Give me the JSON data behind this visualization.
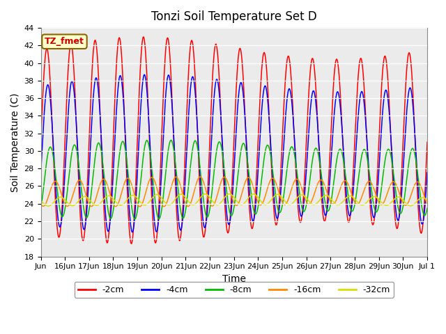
{
  "title": "Tonzi Soil Temperature Set D",
  "xlabel": "Time",
  "ylabel": "Soil Temperature (C)",
  "ylim": [
    18,
    44
  ],
  "yticks": [
    18,
    20,
    22,
    24,
    26,
    28,
    30,
    32,
    34,
    36,
    38,
    40,
    42,
    44
  ],
  "legend_label": "TZ_fmet",
  "series_order": [
    "-2cm",
    "-4cm",
    "-8cm",
    "-16cm",
    "-32cm"
  ],
  "series": {
    "-2cm": {
      "color": "#FF0000",
      "amplitude": 10.5,
      "mean": 31.0,
      "phase": 0.0,
      "phase_slow": 0.0
    },
    "-4cm": {
      "color": "#0000FF",
      "amplitude": 8.0,
      "mean": 29.5,
      "phase": 0.25,
      "phase_slow": 0.1
    },
    "-8cm": {
      "color": "#00BB00",
      "amplitude": 4.0,
      "mean": 26.5,
      "phase": 0.9,
      "phase_slow": 0.3
    },
    "-16cm": {
      "color": "#FF8800",
      "amplitude": 1.5,
      "mean": 25.1,
      "phase": 2.2,
      "phase_slow": 0.7
    },
    "-32cm": {
      "color": "#DDDD00",
      "amplitude": 0.55,
      "mean": 24.2,
      "phase": 3.5,
      "phase_slow": 1.2
    }
  },
  "n_points": 4000,
  "n_days": 16.0,
  "plot_bg": "#EBEBEB",
  "fig_bg": "#FFFFFF",
  "legend_bg": "#FFFFCC",
  "legend_border": "#886600",
  "legend_text_color": "#CC0000",
  "grid_color": "#FFFFFF"
}
